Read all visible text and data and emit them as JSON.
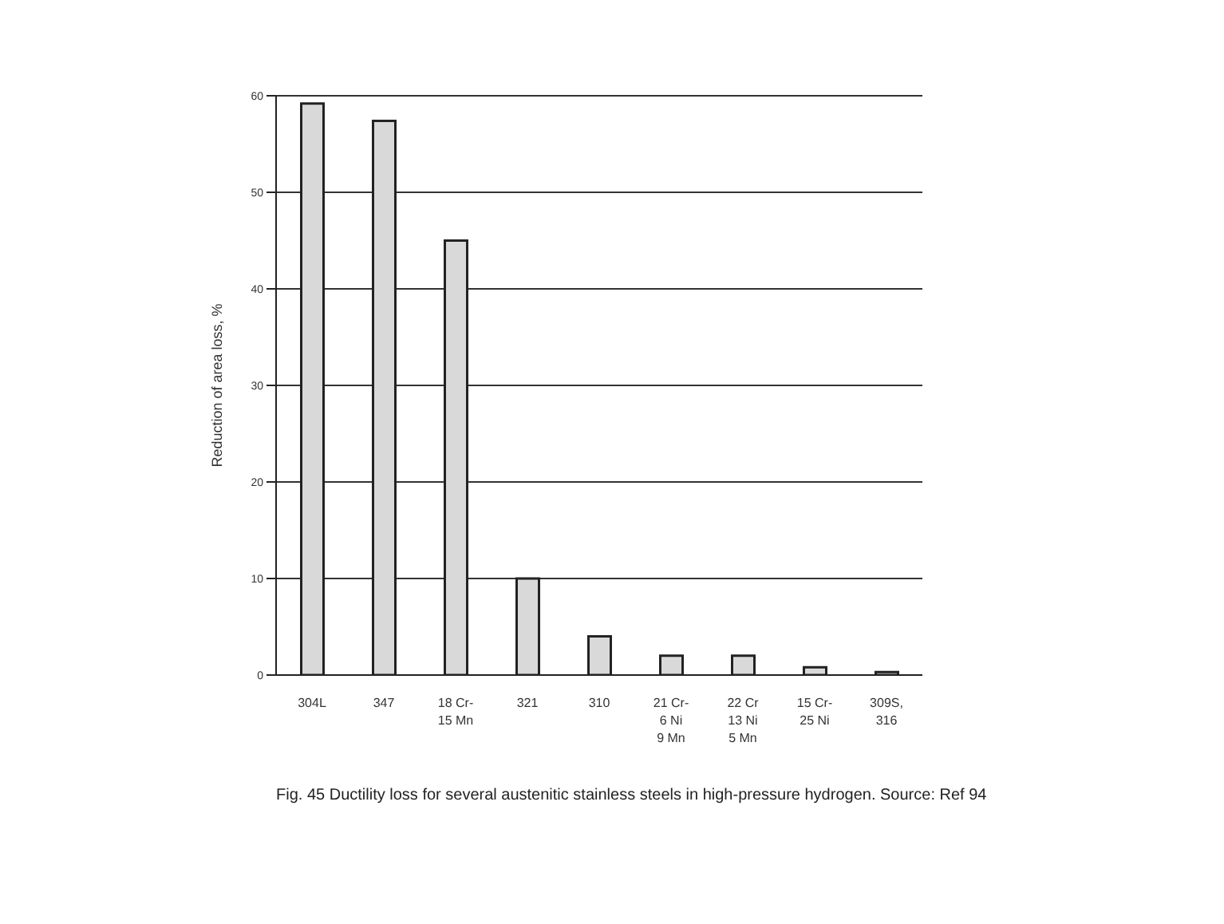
{
  "chart_data": {
    "type": "bar",
    "ylabel": "Reduction of area loss, %",
    "categories": [
      "304L",
      "347",
      "18 Cr-\n15 Mn",
      "321",
      "310",
      "21 Cr-\n6 Ni\n9 Mn",
      "22 Cr\n13 Ni\n5 Mn",
      "15 Cr-\n25 Ni",
      "309S,\n316"
    ],
    "values": [
      59.2,
      57.4,
      45,
      10,
      4,
      2,
      2,
      0.8,
      0.3
    ],
    "color": "#d9d9d9",
    "ylim": [
      0,
      60
    ],
    "yticks": [
      0,
      10,
      20,
      30,
      40,
      50,
      60
    ],
    "grid": "y",
    "annotations": [
      "Fig. 45 Ductility loss for several austenitic stainless steels in high-pressure hydrogen. Source: Ref 94"
    ]
  }
}
